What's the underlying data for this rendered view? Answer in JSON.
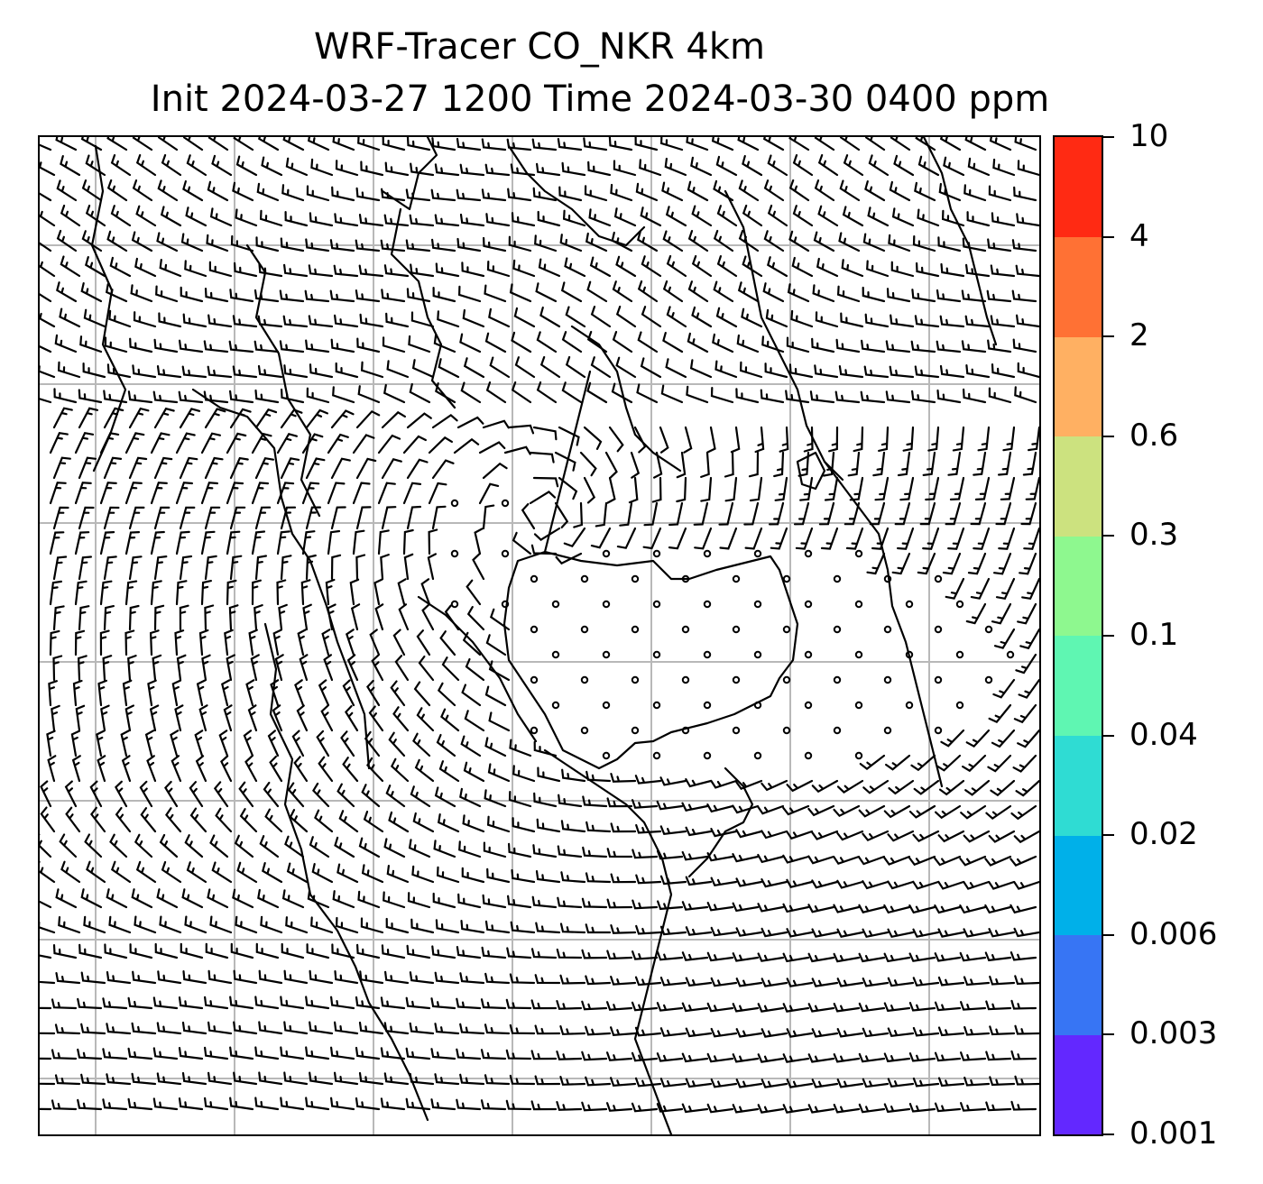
{
  "title": {
    "line1": "WRF-Tracer CO_NKR 4km",
    "line2": "Init 2024-03-27 1200 Time 2024-03-30 0400 ppm"
  },
  "map": {
    "grid_lines": true,
    "wind_barbs": true,
    "calm_markers": "circle"
  },
  "colorbar": {
    "levels": [
      "0.001",
      "0.003",
      "0.006",
      "0.02",
      "0.04",
      "0.1",
      "0.3",
      "0.6",
      "2",
      "4",
      "10"
    ],
    "colors": [
      "#6328ff",
      "#3775f4",
      "#00b0e9",
      "#2fdcd3",
      "#5ff6b2",
      "#8ef88f",
      "#cce27f",
      "#ffb062",
      "#ff7134",
      "#ff2a13"
    ]
  }
}
